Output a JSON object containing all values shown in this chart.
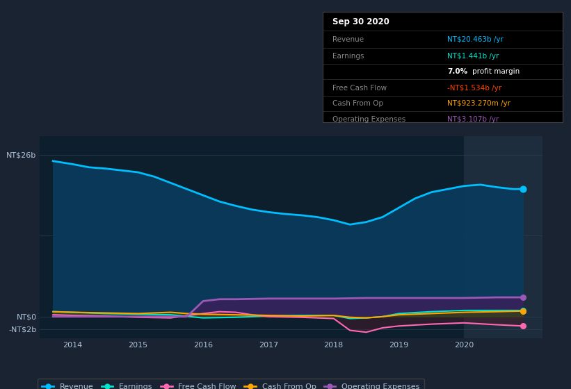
{
  "bg_color": "#1a2332",
  "plot_bg_color": "#0d1f2d",
  "highlight_bg": "#1e2d3d",
  "ylim": [
    -3.5,
    29
  ],
  "xlim": [
    2013.5,
    2021.2
  ],
  "xtick_labels": [
    "2014",
    "2015",
    "2016",
    "2017",
    "2018",
    "2019",
    "2020"
  ],
  "xtick_values": [
    2014,
    2015,
    2016,
    2017,
    2018,
    2019,
    2020
  ],
  "legend_items": [
    {
      "label": "Revenue",
      "color": "#00bfff"
    },
    {
      "label": "Earnings",
      "color": "#00e5cc"
    },
    {
      "label": "Free Cash Flow",
      "color": "#ff69b4"
    },
    {
      "label": "Cash From Op",
      "color": "#ffa500"
    },
    {
      "label": "Operating Expenses",
      "color": "#9b59b6"
    }
  ],
  "revenue_x": [
    2013.7,
    2014.0,
    2014.25,
    2014.5,
    2014.75,
    2015.0,
    2015.25,
    2015.5,
    2015.75,
    2016.0,
    2016.25,
    2016.5,
    2016.75,
    2017.0,
    2017.25,
    2017.5,
    2017.75,
    2018.0,
    2018.25,
    2018.5,
    2018.75,
    2019.0,
    2019.25,
    2019.5,
    2019.75,
    2020.0,
    2020.25,
    2020.5,
    2020.75,
    2020.9
  ],
  "revenue_y": [
    25.0,
    24.5,
    24.0,
    23.8,
    23.5,
    23.2,
    22.5,
    21.5,
    20.5,
    19.5,
    18.5,
    17.8,
    17.2,
    16.8,
    16.5,
    16.3,
    16.0,
    15.5,
    14.8,
    15.2,
    16.0,
    17.5,
    19.0,
    20.0,
    20.5,
    21.0,
    21.2,
    20.8,
    20.5,
    20.5
  ],
  "earnings_x": [
    2013.7,
    2014.0,
    2014.5,
    2015.0,
    2015.5,
    2016.0,
    2016.5,
    2017.0,
    2017.5,
    2018.0,
    2018.25,
    2018.5,
    2018.75,
    2019.0,
    2019.5,
    2020.0,
    2020.5,
    2020.9
  ],
  "earnings_y": [
    0.8,
    0.7,
    0.5,
    0.4,
    0.3,
    -0.2,
    -0.1,
    0.1,
    0.2,
    0.2,
    -0.3,
    -0.2,
    0.0,
    0.5,
    0.8,
    1.0,
    1.0,
    1.0
  ],
  "fcf_x": [
    2013.7,
    2014.0,
    2014.5,
    2015.0,
    2015.5,
    2016.0,
    2016.25,
    2016.5,
    2016.75,
    2017.0,
    2017.5,
    2018.0,
    2018.25,
    2018.5,
    2018.75,
    2019.0,
    2019.5,
    2020.0,
    2020.5,
    2020.9
  ],
  "fcf_y": [
    0.3,
    0.2,
    0.1,
    -0.1,
    -0.2,
    0.5,
    0.8,
    0.7,
    0.3,
    0.0,
    -0.1,
    -0.3,
    -2.2,
    -2.5,
    -1.8,
    -1.5,
    -1.2,
    -1.0,
    -1.3,
    -1.5
  ],
  "cashfromop_x": [
    2013.7,
    2014.0,
    2014.5,
    2015.0,
    2015.25,
    2015.5,
    2015.75,
    2016.0,
    2016.5,
    2017.0,
    2017.5,
    2018.0,
    2018.25,
    2018.5,
    2018.75,
    2019.0,
    2019.5,
    2020.0,
    2020.5,
    2020.9
  ],
  "cashfromop_y": [
    0.8,
    0.7,
    0.6,
    0.5,
    0.6,
    0.7,
    0.5,
    0.4,
    0.3,
    0.2,
    0.1,
    0.2,
    -0.1,
    -0.2,
    0.0,
    0.3,
    0.5,
    0.7,
    0.8,
    0.9
  ],
  "opex_x": [
    2013.7,
    2015.75,
    2016.0,
    2016.25,
    2016.5,
    2017.0,
    2017.5,
    2018.0,
    2018.5,
    2019.0,
    2019.5,
    2020.0,
    2020.5,
    2020.9
  ],
  "opex_y": [
    0.0,
    0.0,
    2.5,
    2.8,
    2.8,
    2.9,
    2.9,
    2.9,
    3.0,
    3.0,
    3.0,
    3.0,
    3.1,
    3.1
  ],
  "highlight_x_start": 2020.0,
  "highlight_x_end": 2021.2,
  "text_color": "#b0c4d8",
  "grid_color": "#2a3f55"
}
